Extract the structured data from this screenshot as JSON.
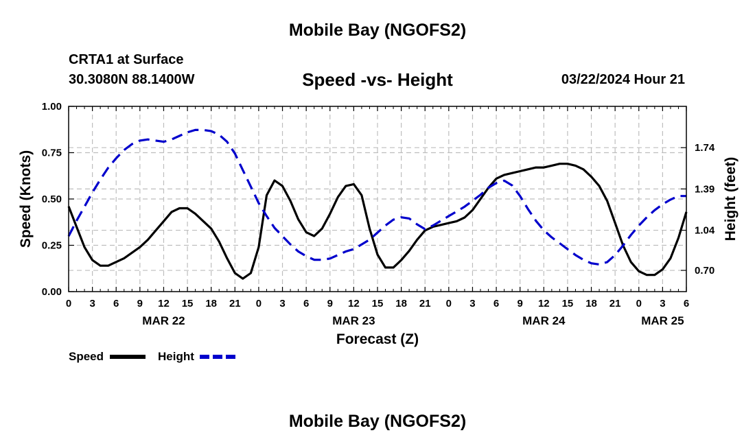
{
  "header": {
    "title": "Mobile Bay (NGOFS2)",
    "station": "CRTA1 at Surface",
    "coords": "30.3080N  88.1400W",
    "subtitle": "Speed -vs- Height",
    "datetime": "03/22/2024 Hour 21",
    "footer_title": "Mobile Bay (NGOFS2)"
  },
  "chart_data": {
    "type": "line",
    "title": "Speed -vs- Height",
    "xlabel": "Forecast (Z)",
    "ylabel": "Speed (Knots)",
    "y2label": "Height (feet)",
    "xlim": [
      0,
      78
    ],
    "ylim": [
      0,
      1
    ],
    "y2lim": [
      0.52,
      2.09
    ],
    "x_tick_values": [
      0,
      3,
      6,
      9,
      12,
      15,
      18,
      21,
      24,
      27,
      30,
      33,
      36,
      39,
      42,
      45,
      48,
      51,
      54,
      57,
      60,
      63,
      66,
      69,
      72,
      75,
      78
    ],
    "x_tick_labels": [
      "0",
      "3",
      "6",
      "9",
      "12",
      "15",
      "18",
      "21",
      "0",
      "3",
      "6",
      "9",
      "12",
      "15",
      "18",
      "21",
      "0",
      "3",
      "6",
      "9",
      "12",
      "15",
      "18",
      "21",
      "0",
      "3",
      "6"
    ],
    "y_ticks": [
      "0.00",
      "0.25",
      "0.50",
      "0.75",
      "1.00"
    ],
    "y_tick_values": [
      0,
      0.25,
      0.5,
      0.75,
      1.0
    ],
    "y2_ticks": [
      "0.70",
      "1.04",
      "1.39",
      "1.74"
    ],
    "y2_tick_values": [
      0.7,
      1.04,
      1.39,
      1.74
    ],
    "date_labels": [
      {
        "text": "MAR 22",
        "x": 12
      },
      {
        "text": "MAR 23",
        "x": 36
      },
      {
        "text": "MAR 24",
        "x": 60
      },
      {
        "text": "MAR 25",
        "x": 75
      }
    ],
    "grid": true,
    "legend": [
      {
        "name": "Speed",
        "color": "#000000",
        "style": "solid"
      },
      {
        "name": "Height",
        "color": "#0000cc",
        "style": "dashed"
      }
    ],
    "series": [
      {
        "name": "Speed",
        "axis": "left",
        "color": "#000000",
        "x": [
          0,
          1,
          2,
          3,
          4,
          5,
          6,
          7,
          8,
          9,
          10,
          11,
          12,
          13,
          14,
          15,
          16,
          17,
          18,
          19,
          20,
          21,
          22,
          23,
          24,
          25,
          26,
          27,
          28,
          29,
          30,
          31,
          32,
          33,
          34,
          35,
          36,
          37,
          38,
          39,
          40,
          41,
          42,
          43,
          44,
          45,
          46,
          47,
          48,
          49,
          50,
          51,
          52,
          53,
          54,
          55,
          56,
          57,
          58,
          59,
          60,
          61,
          62,
          63,
          64,
          65,
          66,
          67,
          68,
          69,
          70,
          71,
          72,
          73,
          74,
          75,
          76,
          77,
          78
        ],
        "values": [
          0.46,
          0.35,
          0.24,
          0.17,
          0.14,
          0.14,
          0.16,
          0.18,
          0.21,
          0.24,
          0.28,
          0.33,
          0.38,
          0.43,
          0.45,
          0.45,
          0.42,
          0.38,
          0.34,
          0.27,
          0.18,
          0.1,
          0.07,
          0.1,
          0.24,
          0.52,
          0.6,
          0.57,
          0.49,
          0.39,
          0.32,
          0.3,
          0.34,
          0.42,
          0.51,
          0.57,
          0.58,
          0.52,
          0.34,
          0.2,
          0.13,
          0.13,
          0.17,
          0.22,
          0.28,
          0.33,
          0.35,
          0.36,
          0.37,
          0.38,
          0.4,
          0.44,
          0.5,
          0.56,
          0.61,
          0.63,
          0.64,
          0.65,
          0.66,
          0.67,
          0.67,
          0.68,
          0.69,
          0.69,
          0.68,
          0.66,
          0.62,
          0.57,
          0.49,
          0.37,
          0.25,
          0.16,
          0.11,
          0.09,
          0.09,
          0.12,
          0.18,
          0.29,
          0.43
        ]
      },
      {
        "name": "Height",
        "axis": "right",
        "color": "#0000cc",
        "x": [
          0,
          1,
          2,
          3,
          4,
          5,
          6,
          7,
          8,
          9,
          10,
          11,
          12,
          13,
          14,
          15,
          16,
          17,
          18,
          19,
          20,
          21,
          22,
          23,
          24,
          25,
          26,
          27,
          28,
          29,
          30,
          31,
          32,
          33,
          34,
          35,
          36,
          37,
          38,
          39,
          40,
          41,
          42,
          43,
          44,
          45,
          46,
          47,
          48,
          49,
          50,
          51,
          52,
          53,
          54,
          55,
          56,
          57,
          58,
          59,
          60,
          61,
          62,
          63,
          64,
          65,
          66,
          67,
          68,
          69,
          70,
          71,
          72,
          73,
          74,
          75,
          76,
          77,
          78
        ],
        "values": [
          0.99,
          1.12,
          1.24,
          1.36,
          1.47,
          1.57,
          1.65,
          1.72,
          1.77,
          1.8,
          1.81,
          1.8,
          1.79,
          1.81,
          1.84,
          1.87,
          1.89,
          1.89,
          1.88,
          1.85,
          1.79,
          1.69,
          1.55,
          1.41,
          1.27,
          1.16,
          1.06,
          0.99,
          0.92,
          0.86,
          0.82,
          0.79,
          0.79,
          0.8,
          0.83,
          0.86,
          0.88,
          0.92,
          0.96,
          1.02,
          1.08,
          1.13,
          1.15,
          1.14,
          1.09,
          1.05,
          1.08,
          1.12,
          1.16,
          1.2,
          1.24,
          1.29,
          1.34,
          1.4,
          1.44,
          1.46,
          1.42,
          1.33,
          1.22,
          1.12,
          1.04,
          0.98,
          0.93,
          0.88,
          0.83,
          0.79,
          0.76,
          0.75,
          0.77,
          0.83,
          0.91,
          1.0,
          1.08,
          1.15,
          1.21,
          1.26,
          1.3,
          1.33,
          1.33
        ]
      }
    ]
  }
}
